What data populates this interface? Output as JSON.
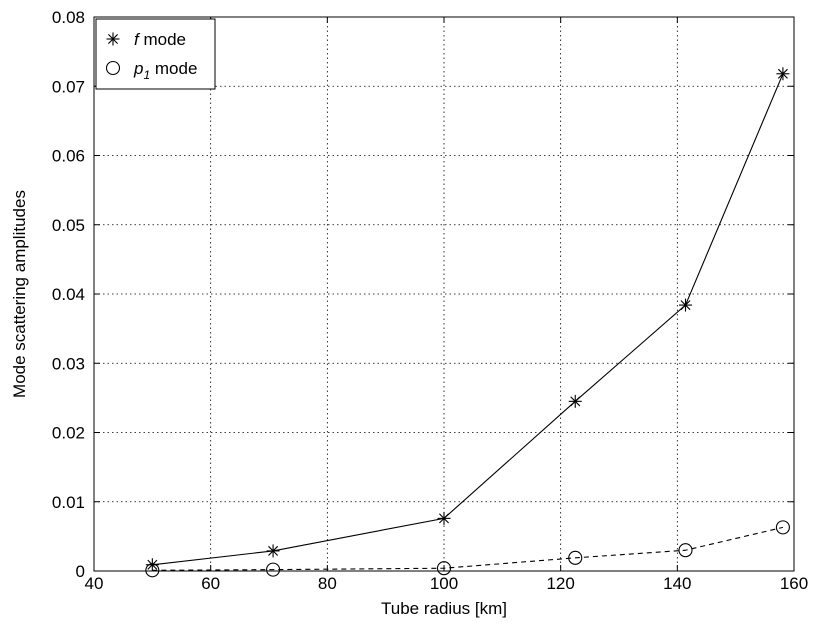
{
  "chart_data": {
    "type": "line",
    "xlabel": "Tube radius [km]",
    "ylabel": "Mode scattering amplitudes",
    "xlim": [
      40,
      160
    ],
    "ylim": [
      0,
      0.08
    ],
    "xticks": [
      40,
      60,
      80,
      100,
      120,
      140,
      160
    ],
    "yticks": [
      0,
      0.01,
      0.02,
      0.03,
      0.04,
      0.05,
      0.06,
      0.07,
      0.08
    ],
    "grid": true,
    "legend_position": "top-left",
    "series": [
      {
        "name": "f mode",
        "name_symbol": "f",
        "name_suffix": " mode",
        "marker": "asterisk",
        "line_style": "solid",
        "color": "#000000",
        "x": [
          50,
          70.7,
          100,
          122.5,
          141.4,
          158.1
        ],
        "y": [
          0.0009,
          0.0029,
          0.0076,
          0.0245,
          0.0384,
          0.0718
        ]
      },
      {
        "name": "p1 mode",
        "name_symbol": "p",
        "name_subscript": "1",
        "name_suffix": " mode",
        "marker": "circle",
        "line_style": "dashed",
        "color": "#000000",
        "x": [
          50,
          70.7,
          100,
          122.5,
          141.4,
          158.1
        ],
        "y": [
          0.0001,
          0.0002,
          0.0004,
          0.0019,
          0.003,
          0.0063
        ]
      }
    ]
  }
}
